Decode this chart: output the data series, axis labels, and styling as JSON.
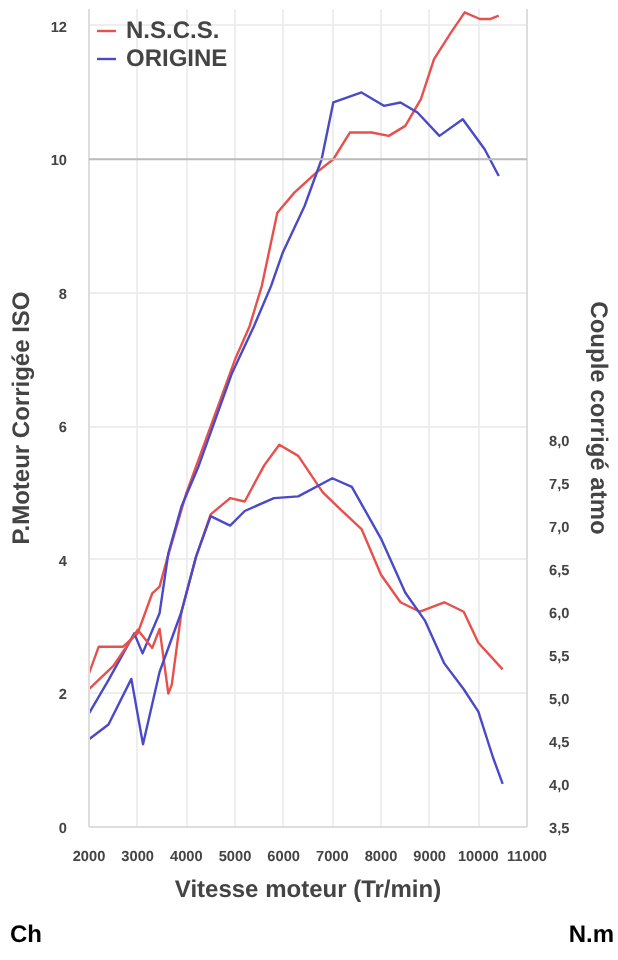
{
  "chart_data": {
    "type": "line",
    "xlabel": "Vitesse moteur (Tr/min)",
    "ylabel": "P.Moteur Corrigée ISO",
    "y2label": "Couple corrigé atmo",
    "annotations": [
      "Ch",
      "N.m"
    ],
    "xlim": [
      2000,
      11000
    ],
    "xticks": [
      2000,
      3000,
      4000,
      5000,
      6000,
      7000,
      8000,
      9000,
      10000,
      11000
    ],
    "ylim": [
      0,
      12.25
    ],
    "yticks": [
      0,
      2,
      4,
      6,
      8,
      10,
      12
    ],
    "y2lim": [
      3.5,
      13.0
    ],
    "y2ticks": [
      {
        "value": 3.5,
        "label": "3,5"
      },
      {
        "value": 4.0,
        "label": "4,0"
      },
      {
        "value": 4.5,
        "label": "4,5"
      },
      {
        "value": 5.0,
        "label": "5,0"
      },
      {
        "value": 5.5,
        "label": "5,5"
      },
      {
        "value": 6.0,
        "label": "6,0"
      },
      {
        "value": 6.5,
        "label": "6,5"
      },
      {
        "value": 7.0,
        "label": "7,0"
      },
      {
        "value": 7.5,
        "label": "7,5"
      },
      {
        "value": 8.0,
        "label": "8,0"
      }
    ],
    "grid": true,
    "legend": "top left",
    "marker": "none",
    "line_style": "solid",
    "ref_lines": [
      {
        "axis": "y",
        "value": 10,
        "label": null,
        "color": "#bbbbbb"
      }
    ],
    "series": [
      {
        "name": "N.S.C.S.",
        "color": "#e8504c",
        "x": [
          2000,
          2200,
          2700,
          3000,
          3300,
          3450,
          3600,
          4000,
          4500,
          5000,
          5300,
          5550,
          5870,
          6220,
          6670,
          7020,
          7360,
          7810,
          8160,
          8500,
          8820,
          9090,
          9440,
          9720,
          10030,
          10240,
          10420
        ],
        "values": [
          2.3,
          2.7,
          2.7,
          2.9,
          3.5,
          3.6,
          4.0,
          5.0,
          6.0,
          7.0,
          7.5,
          8.1,
          9.2,
          9.5,
          9.8,
          10.0,
          10.4,
          10.4,
          10.35,
          10.5,
          10.9,
          11.5,
          11.9,
          12.2,
          12.1,
          12.1,
          12.15
        ]
      },
      {
        "name": "ORIGINE",
        "color": "#4a4ac8",
        "x": [
          2000,
          2400,
          2930,
          3100,
          3450,
          3630,
          3900,
          4250,
          4940,
          5390,
          5740,
          5980,
          6430,
          6780,
          7020,
          7600,
          8060,
          8400,
          8750,
          9200,
          9680,
          10130,
          10420
        ],
        "values": [
          1.7,
          2.2,
          2.9,
          2.6,
          3.2,
          4.1,
          4.8,
          5.4,
          6.8,
          7.5,
          8.1,
          8.6,
          9.3,
          10.0,
          10.85,
          11.0,
          10.8,
          10.85,
          10.7,
          10.35,
          10.6,
          10.15,
          9.75
        ]
      },
      {
        "color": "#e8504c",
        "axis": "y2",
        "x": [
          2000,
          2500,
          3000,
          3300,
          3450,
          3630,
          3700,
          3900,
          4200,
          4500,
          4900,
          5200,
          5600,
          5910,
          6300,
          6800,
          7200,
          7600,
          8000,
          8400,
          8800,
          9300,
          9700,
          10000,
          10500
        ],
        "values": [
          5.1,
          5.37,
          5.79,
          5.58,
          5.8,
          5.05,
          5.15,
          6.0,
          6.64,
          7.13,
          7.32,
          7.28,
          7.7,
          7.94,
          7.81,
          7.39,
          7.17,
          6.96,
          6.43,
          6.11,
          6.0,
          6.11,
          6.0,
          5.64,
          5.33
        ]
      },
      {
        "color": "#4a4ac8",
        "axis": "y2",
        "x": [
          2000,
          2400,
          2870,
          3110,
          3450,
          3900,
          4200,
          4500,
          4900,
          5200,
          5800,
          6300,
          7000,
          7400,
          8000,
          8500,
          8900,
          9300,
          9700,
          10000,
          10300,
          10500
        ],
        "values": [
          4.52,
          4.69,
          5.22,
          4.46,
          5.3,
          6.0,
          6.64,
          7.11,
          7.0,
          7.17,
          7.32,
          7.34,
          7.55,
          7.45,
          6.85,
          6.22,
          5.9,
          5.4,
          5.1,
          4.84,
          4.31,
          4.0
        ]
      }
    ]
  }
}
